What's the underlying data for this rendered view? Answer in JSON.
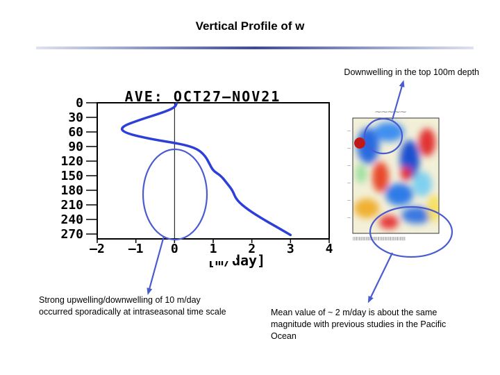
{
  "slide": {
    "title": "Vertical Profile of w",
    "caption_top_right": "Downwelling in the top 100m depth",
    "caption_bottom_left": "Strong upwelling/downwelling of 10 m/day occurred sporadically at intraseasonal time scale",
    "caption_bottom_right": "Mean value of ~ 2 m/day is about the same magnitude with previous studies in the Pacific Ocean"
  },
  "colors": {
    "profile_line": "#2c3fd8",
    "annotation": "#4a5bd0",
    "axis": "#000000",
    "title_rule": "#3a4aa0"
  },
  "chart_data": [
    {
      "type": "line",
      "title": "AVE: OCT27—NOV21",
      "xlabel": "[m/day]",
      "ylabel": "",
      "xlim": [
        -2,
        4
      ],
      "ylim": [
        0,
        280
      ],
      "y_inverted": true,
      "xticks": [
        "—2",
        "—1",
        "0",
        "1",
        "2",
        "3",
        "4"
      ],
      "yticks": [
        "0",
        "30",
        "60",
        "90",
        "120",
        "150",
        "180",
        "210",
        "240",
        "270"
      ],
      "ytick_values": [
        0,
        30,
        60,
        90,
        120,
        150,
        180,
        210,
        240,
        270
      ],
      "xtick_values": [
        -2,
        -1,
        0,
        1,
        2,
        3,
        4
      ],
      "zero_line": true,
      "series": [
        {
          "x": [
            0.05,
            0.0,
            -0.3,
            -0.9,
            -1.4,
            -1.3,
            -0.6,
            0.2,
            0.6,
            0.8,
            0.9,
            1.0,
            1.2,
            1.35,
            1.5,
            1.6,
            1.9,
            2.3,
            2.7,
            3.0
          ],
          "y": [
            2,
            10,
            20,
            35,
            50,
            62,
            75,
            85,
            95,
            110,
            125,
            140,
            150,
            165,
            180,
            200,
            220,
            240,
            258,
            272
          ]
        }
      ]
    },
    {
      "type": "heatmap",
      "title": "",
      "xlabel": "",
      "ylabel": "",
      "note": "small time-depth map of w with red/blue patches"
    }
  ]
}
